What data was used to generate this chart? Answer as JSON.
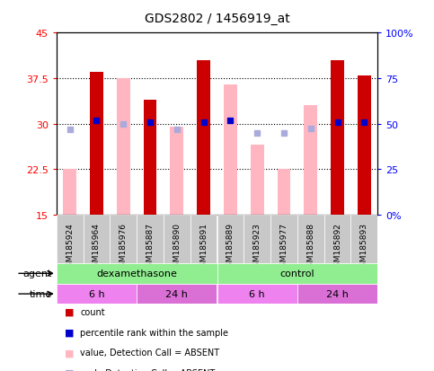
{
  "title": "GDS2802 / 1456919_at",
  "samples": [
    "GSM185924",
    "GSM185964",
    "GSM185976",
    "GSM185887",
    "GSM185890",
    "GSM185891",
    "GSM185889",
    "GSM185923",
    "GSM185977",
    "GSM185888",
    "GSM185892",
    "GSM185893"
  ],
  "count_values": [
    null,
    38.5,
    null,
    34.0,
    null,
    40.5,
    null,
    null,
    null,
    null,
    40.5,
    38.0
  ],
  "value_absent": [
    22.5,
    null,
    37.5,
    null,
    29.5,
    null,
    36.5,
    26.5,
    22.5,
    33.0,
    null,
    null
  ],
  "percentile_rank_left": [
    null,
    30.5,
    null,
    30.3,
    null,
    30.3,
    30.5,
    null,
    null,
    null,
    30.3,
    30.3
  ],
  "rank_absent_left": [
    29.0,
    null,
    30.0,
    null,
    29.0,
    null,
    null,
    28.5,
    28.5,
    29.2,
    null,
    null
  ],
  "ylim_left": [
    15,
    45
  ],
  "ylim_right": [
    0,
    100
  ],
  "yticks_left": [
    15,
    22.5,
    30,
    37.5,
    45
  ],
  "yticks_right": [
    0,
    25,
    50,
    75,
    100
  ],
  "ytick_labels_left": [
    "15",
    "22.5",
    "30",
    "37.5",
    "45"
  ],
  "ytick_labels_right": [
    "0%",
    "25",
    "50",
    "75",
    "100%"
  ],
  "agent_groups": [
    {
      "label": "dexamethasone",
      "start": 0,
      "end": 6,
      "color": "#90EE90"
    },
    {
      "label": "control",
      "start": 6,
      "end": 12,
      "color": "#90EE90"
    }
  ],
  "time_groups": [
    {
      "label": "6 h",
      "start": 0,
      "end": 3,
      "color": "#EE82EE"
    },
    {
      "label": "24 h",
      "start": 3,
      "end": 6,
      "color": "#DA70D6"
    },
    {
      "label": "6 h",
      "start": 6,
      "end": 9,
      "color": "#EE82EE"
    },
    {
      "label": "24 h",
      "start": 9,
      "end": 12,
      "color": "#DA70D6"
    }
  ],
  "bar_width": 0.5,
  "count_color": "#CC0000",
  "value_absent_color": "#FFB6C1",
  "percentile_color": "#0000CC",
  "rank_absent_color": "#AAAADD",
  "legend_items": [
    {
      "color": "#CC0000",
      "label": "count"
    },
    {
      "color": "#0000CC",
      "label": "percentile rank within the sample"
    },
    {
      "color": "#FFB6C1",
      "label": "value, Detection Call = ABSENT"
    },
    {
      "color": "#AAAADD",
      "label": "rank, Detection Call = ABSENT"
    }
  ]
}
